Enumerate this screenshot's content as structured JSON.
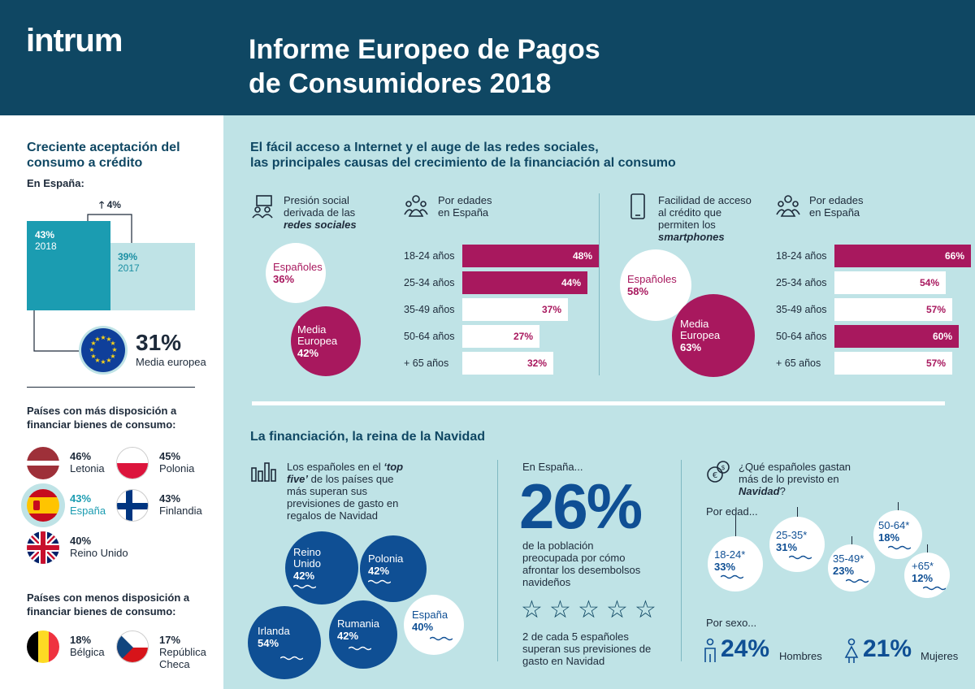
{
  "header": {
    "logo": "intrum",
    "title_line1": "Informe Europeo de Pagos",
    "title_line2": "de Consumidores 2018"
  },
  "left": {
    "title_line1": "Creciente aceptación del",
    "title_line2": "consumo a crédito",
    "in_spain": "En España:",
    "growth": "4%",
    "y2018_value": "43%",
    "y2018_label": "2018",
    "y2017_value": "39%",
    "y2017_label": "2017",
    "eu_value": "31%",
    "eu_label": "Media europea",
    "more_title_line1": "Países con más disposición a",
    "more_title_line2": "financiar bienes de consumo:",
    "more": [
      {
        "value": "46%",
        "name": "Letonia"
      },
      {
        "value": "45%",
        "name": "Polonia"
      },
      {
        "value": "43%",
        "name": "España"
      },
      {
        "value": "43%",
        "name": "Finlandia"
      },
      {
        "value": "40%",
        "name": "Reino Unido"
      }
    ],
    "less_title_line1": "Países con menos disposición a",
    "less_title_line2": "financiar bienes de consumo:",
    "less": [
      {
        "value": "18%",
        "name": "Bélgica"
      },
      {
        "value": "17%",
        "name_line1": "República",
        "name_line2": "Checa"
      }
    ]
  },
  "top": {
    "title_line1": "El fácil acceso a Internet y el auge de las redes sociales,",
    "title_line2": "las principales causas del crecimiento de la financiación al consumo",
    "social_line1": "Presión social",
    "social_line2": "derivada de las",
    "social_line3": "redes sociales",
    "age_line1": "Por edades",
    "age_line2": "en España",
    "social_spain_label": "Españoles",
    "social_spain_value": "36%",
    "social_eu_line1": "Media",
    "social_eu_line2": "Europea",
    "social_eu_value": "42%",
    "phone_line1": "Facilidad de acceso",
    "phone_line2": "al crédito que",
    "phone_line3": "permiten los",
    "phone_line4": "smartphones",
    "phone_spain_label": "Españoles",
    "phone_spain_value": "58%",
    "phone_eu_line1": "Media",
    "phone_eu_line2": "Europea",
    "phone_eu_value": "63%"
  },
  "chart_data": [
    {
      "type": "bar",
      "title": "Presión social derivada de las redes sociales",
      "categories": [
        "18-24 años",
        "25-34 años",
        "35-49 años",
        "50-64 años",
        "+ 65 años"
      ],
      "values": [
        48,
        44,
        37,
        27,
        32
      ],
      "labels": [
        "48%",
        "44%",
        "37%",
        "27%",
        "32%"
      ]
    },
    {
      "type": "bar",
      "title": "Facilidad de acceso al crédito que permiten los smartphones",
      "categories": [
        "18-24 años",
        "25-34 años",
        "35-49 años",
        "50-64 años",
        "+ 65 años"
      ],
      "values": [
        66,
        54,
        57,
        60,
        57
      ],
      "labels": [
        "66%",
        "54%",
        "57%",
        "60%",
        "57%"
      ]
    }
  ],
  "bottom": {
    "title": "La financiación, la reina de la Navidad",
    "top5_line1": "Los españoles en el ",
    "top5_em1": "‘top",
    "top5_em2": "five’",
    "top5_line2": " de los países que",
    "top5_line3": "más superan sus",
    "top5_line4": "previsiones de gasto en",
    "top5_line5": "regalos de Navidad",
    "countries": [
      {
        "name_line1": "Reino",
        "name_line2": "Unido",
        "value": "42%"
      },
      {
        "name_line1": "Polonia",
        "name_line2": "",
        "value": "42%"
      },
      {
        "name_line1": "Irlanda",
        "name_line2": "",
        "value": "54%"
      },
      {
        "name_line1": "Rumania",
        "name_line2": "",
        "value": "42%"
      },
      {
        "name_line1": "España",
        "name_line2": "",
        "value": "40%"
      }
    ],
    "in_spain": "En España...",
    "big_value": "26%",
    "worried_line1": "de la población",
    "worried_line2": "preocupada por cómo",
    "worried_line3": "afrontar los desembolsos",
    "worried_line4": "navideños",
    "stars_line1": "2 de cada 5 españoles",
    "stars_line2": "superan sus previsiones de",
    "stars_line3": "gasto en Navidad",
    "q_line1": "¿Qué españoles gastan",
    "q_line2": "más de lo previsto en",
    "q_line3": "Navidad",
    "q_mark": "?",
    "by_age": "Por edad...",
    "ages": [
      {
        "label": "18-24*",
        "value": "33%"
      },
      {
        "label": "25-35*",
        "value": "31%"
      },
      {
        "label": "35-49*",
        "value": "23%"
      },
      {
        "label": "50-64*",
        "value": "18%"
      },
      {
        "label": "+65*",
        "value": "12%"
      }
    ],
    "by_sex": "Por sexo...",
    "men_value": "24%",
    "men_label": "Hombres",
    "women_value": "21%",
    "women_label": "Mujeres"
  }
}
